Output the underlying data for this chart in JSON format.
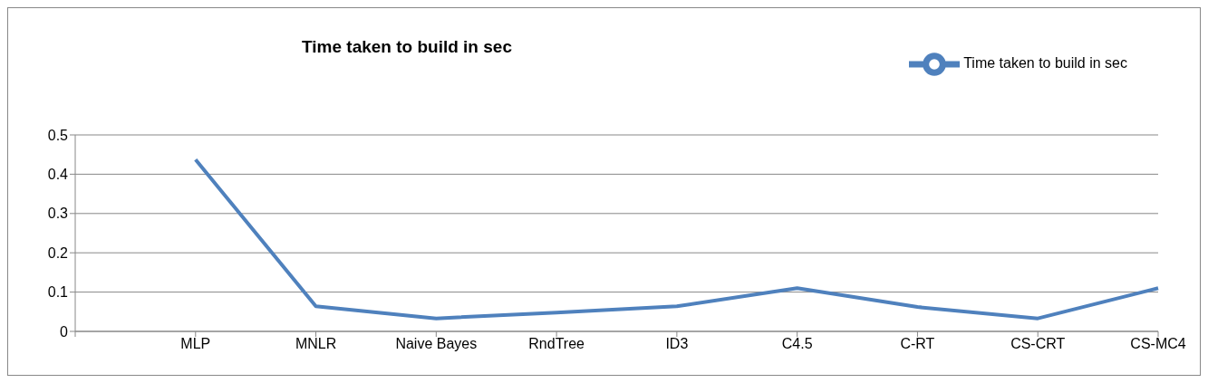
{
  "chart_data": {
    "type": "line",
    "title": "Time taken to build in sec",
    "categories": [
      null,
      "MLP",
      "MNLR",
      "Naive Bayes",
      "RndTree",
      "ID3",
      "C4.5",
      "C-RT",
      "CS-CRT",
      "CS-MC4"
    ],
    "series": [
      {
        "name": "Time taken to build in sec",
        "color": "#4f81bd",
        "values": [
          null,
          0.437,
          0.064,
          0.033,
          0.048,
          0.064,
          0.11,
          0.062,
          0.033,
          0.11
        ]
      }
    ],
    "ylim": [
      0,
      0.5
    ],
    "yticks": [
      0,
      0.1,
      0.2,
      0.3,
      0.4,
      0.5
    ],
    "grid": "y",
    "legend": "top right"
  }
}
